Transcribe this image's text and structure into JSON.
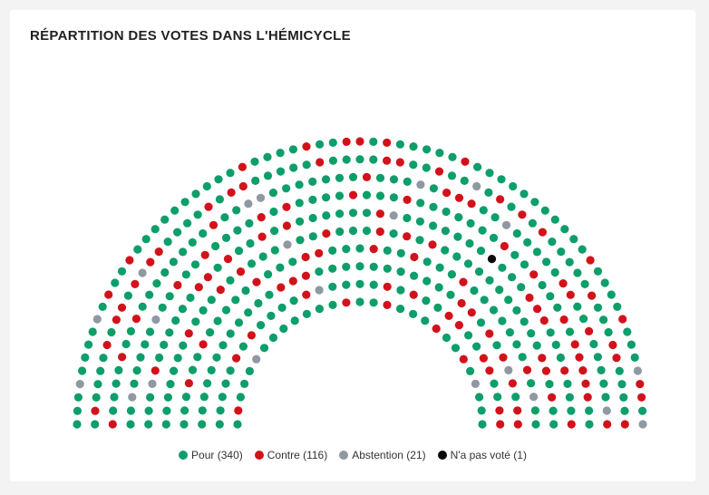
{
  "title": "RÉPARTITION DES VOTES DANS L'HÉMICYCLE",
  "colors": {
    "pour": "#0d9e6a",
    "contre": "#d2121b",
    "abstention": "#8f98a3",
    "nonvotant": "#0b0b0b"
  },
  "legend": [
    {
      "key": "pour",
      "label": "Pour (340)"
    },
    {
      "key": "contre",
      "label": "Contre (116)"
    },
    {
      "key": "abstention",
      "label": "Abstention (21)"
    },
    {
      "key": "nonvotant",
      "label": "N'a pas voté (1)"
    }
  ],
  "chart_data": {
    "type": "hemicycle",
    "title": "RÉPARTITION DES VOTES DANS L'HÉMICYCLE",
    "categories": [
      "Pour",
      "Contre",
      "Abstention",
      "N'a pas voté"
    ],
    "values": [
      340,
      116,
      21,
      1
    ],
    "series": [
      {
        "name": "Pour",
        "value": 340
      },
      {
        "name": "Contre",
        "value": 116
      },
      {
        "name": "Abstention",
        "value": 21
      },
      {
        "name": "N'a pas voté",
        "value": 1
      }
    ],
    "legend_position": "bottom-center"
  }
}
